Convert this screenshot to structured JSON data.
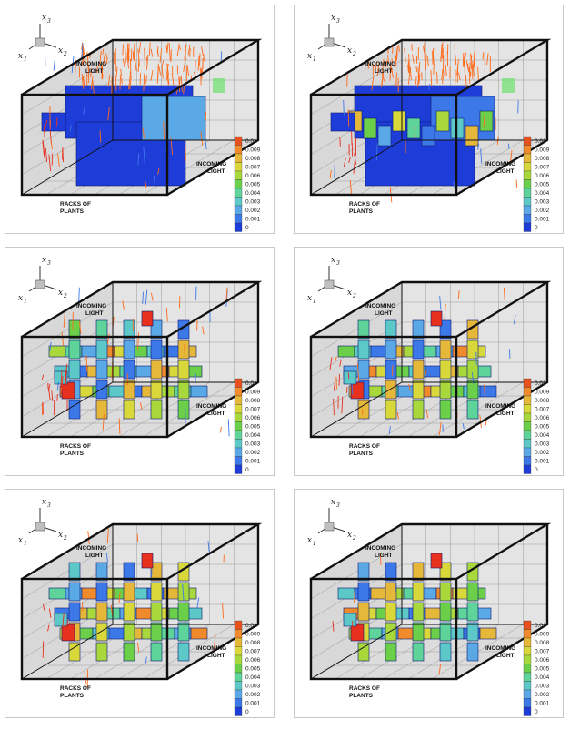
{
  "panels": [
    {
      "id": "p1",
      "stage": 1
    },
    {
      "id": "p2",
      "stage": 2
    },
    {
      "id": "p3",
      "stage": 3
    },
    {
      "id": "p4",
      "stage": 4
    },
    {
      "id": "p5",
      "stage": 5
    },
    {
      "id": "p6",
      "stage": 6
    }
  ],
  "labels": {
    "incoming_light_1": "INCOMING",
    "incoming_light_2": "LIGHT",
    "racks_1": "RACKS OF",
    "racks_2": "PLANTS",
    "axis_x1": "x",
    "axis_x1_sub": "1",
    "axis_x2": "x",
    "axis_x2_sub": "2",
    "axis_x3": "x",
    "axis_x3_sub": "3"
  },
  "legend": {
    "values": [
      "0.01",
      "0.009",
      "0.008",
      "0.007",
      "0.006",
      "0.005",
      "0.004",
      "0.003",
      "0.002",
      "0.001",
      "0"
    ],
    "colors": [
      "#e8501e",
      "#f08a2a",
      "#e6b83a",
      "#d9d83a",
      "#a8d83c",
      "#6ccf4a",
      "#5ed39a",
      "#5cc8c8",
      "#5aa8e6",
      "#3c78e8",
      "#1e3cd8"
    ]
  },
  "colors": {
    "box_edge": "#111111",
    "grid_line": "#9a9a9a",
    "background_box": "#e4e4e4",
    "rack_dark": "#1e3cd8",
    "rack_light": "#5aa8e6",
    "particle_orange": "#ff6a1a",
    "particle_red": "#e8301e"
  }
}
